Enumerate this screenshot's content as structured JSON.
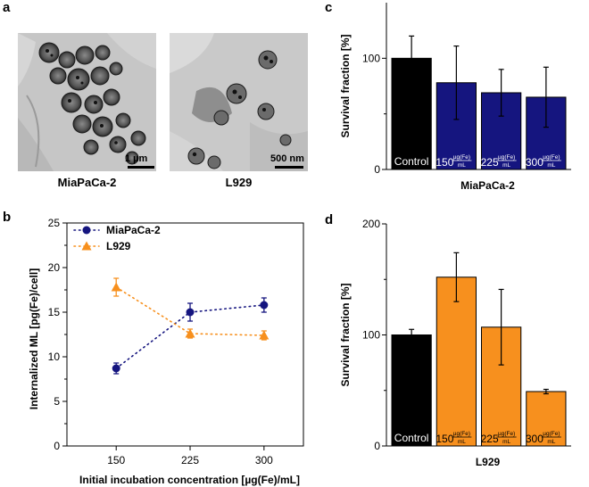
{
  "panels": {
    "a": {
      "label": "a",
      "images": [
        {
          "caption": "MiaPaCa-2",
          "scale_bar": "1 µm"
        },
        {
          "caption": "L929",
          "scale_bar": "500 nm"
        }
      ]
    },
    "b": {
      "label": "b"
    },
    "c": {
      "label": "c"
    },
    "d": {
      "label": "d"
    }
  },
  "colors": {
    "navy": "#15157f",
    "orange": "#f7901e",
    "black": "#000000"
  },
  "chart_data": [
    {
      "id": "b",
      "type": "line",
      "x": [
        150,
        225,
        300
      ],
      "xlabel": "Initial incubation concentration [µg(Fe)/mL]",
      "ylabel": "Internalized ML [pg(Fe)/cell]",
      "xlim": [
        100,
        340
      ],
      "ylim": [
        0,
        25
      ],
      "yticks": [
        0,
        5,
        10,
        15,
        20,
        25
      ],
      "xticks": [
        150,
        225,
        300
      ],
      "legend": "top-left",
      "series": [
        {
          "name": "MiaPaCa-2",
          "values": [
            8.7,
            15.0,
            15.8
          ],
          "errors": [
            0.6,
            1.0,
            0.8
          ],
          "marker": "circle",
          "color": "#15157f"
        },
        {
          "name": "L929",
          "values": [
            17.8,
            12.6,
            12.4
          ],
          "errors": [
            1.0,
            0.5,
            0.5
          ],
          "marker": "triangle",
          "color": "#f7901e"
        }
      ]
    },
    {
      "id": "c",
      "type": "bar",
      "categories": [
        "Control",
        "150",
        "225",
        "300"
      ],
      "unit_num": "µg(Fe)",
      "unit_den": "mL",
      "values": [
        100,
        78,
        69,
        65
      ],
      "errors": [
        20,
        33,
        21,
        27
      ],
      "ylabel": "Survival fraction [%]",
      "xlabel": "MiaPaCa-2",
      "ylim": [
        0,
        150
      ],
      "yticks": [
        0,
        100
      ],
      "colors": [
        "#000000",
        "#15157f",
        "#15157f",
        "#15157f"
      ]
    },
    {
      "id": "d",
      "type": "bar",
      "categories": [
        "Control",
        "150",
        "225",
        "300"
      ],
      "unit_num": "µg(Fe)",
      "unit_den": "mL",
      "values": [
        100,
        152,
        107,
        49
      ],
      "errors": [
        5,
        22,
        34,
        2
      ],
      "ylabel": "Survival fraction [%]",
      "xlabel": "L929",
      "ylim": [
        0,
        200
      ],
      "yticks": [
        0,
        100,
        200
      ],
      "colors": [
        "#000000",
        "#f7901e",
        "#f7901e",
        "#f7901e"
      ]
    }
  ]
}
